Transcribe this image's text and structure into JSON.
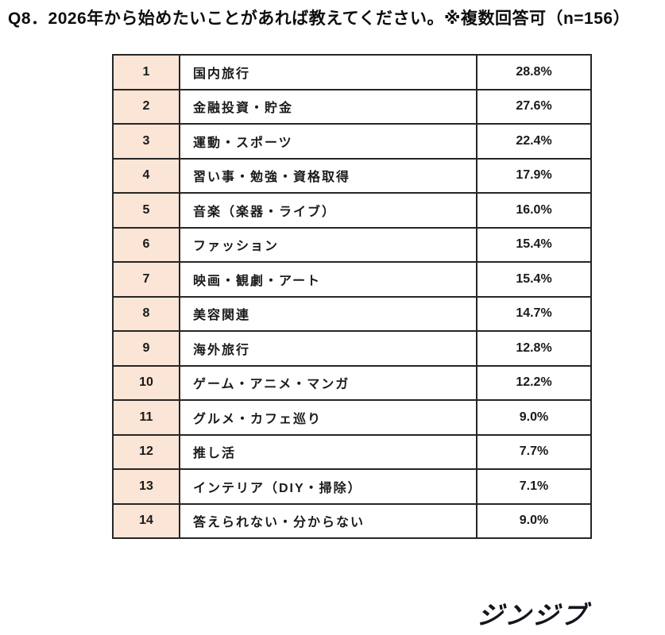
{
  "title": "Q8．2026年から始めたいことがあれば教えてください。※複数回答可（n=156）",
  "logo_text": "ジンジブ",
  "colors": {
    "rank_bg": "#fbe5d6",
    "border": "#262626",
    "text": "#1a1a1a",
    "logo": "#15151f"
  },
  "chart_data": {
    "type": "table",
    "title": "Q8．2026年から始めたいことがあれば教えてください。",
    "subtitle": "※複数回答可（n=156）",
    "n": 156,
    "rows": [
      {
        "rank": "1",
        "item": "国内旅行",
        "percent": "28.8%"
      },
      {
        "rank": "2",
        "item": "金融投資・貯金",
        "percent": "27.6%"
      },
      {
        "rank": "3",
        "item": "運動・スポーツ",
        "percent": "22.4%"
      },
      {
        "rank": "4",
        "item": "習い事・勉強・資格取得",
        "percent": "17.9%"
      },
      {
        "rank": "5",
        "item": "音楽（楽器・ライブ）",
        "percent": "16.0%"
      },
      {
        "rank": "6",
        "item": "ファッション",
        "percent": "15.4%"
      },
      {
        "rank": "7",
        "item": "映画・観劇・アート",
        "percent": "15.4%"
      },
      {
        "rank": "8",
        "item": "美容関連",
        "percent": "14.7%"
      },
      {
        "rank": "9",
        "item": "海外旅行",
        "percent": "12.8%"
      },
      {
        "rank": "10",
        "item": "ゲーム・アニメ・マンガ",
        "percent": "12.2%"
      },
      {
        "rank": "11",
        "item": "グルメ・カフェ巡り",
        "percent": "9.0%"
      },
      {
        "rank": "12",
        "item": "推し活",
        "percent": "7.7%"
      },
      {
        "rank": "13",
        "item": "インテリア（DIY・掃除）",
        "percent": "7.1%"
      },
      {
        "rank": "14",
        "item": "答えられない・分からない",
        "percent": "9.0%"
      }
    ],
    "values_percent": [
      28.8,
      27.6,
      22.4,
      17.9,
      16.0,
      15.4,
      15.4,
      14.7,
      12.8,
      12.2,
      9.0,
      7.7,
      7.1,
      9.0
    ]
  }
}
